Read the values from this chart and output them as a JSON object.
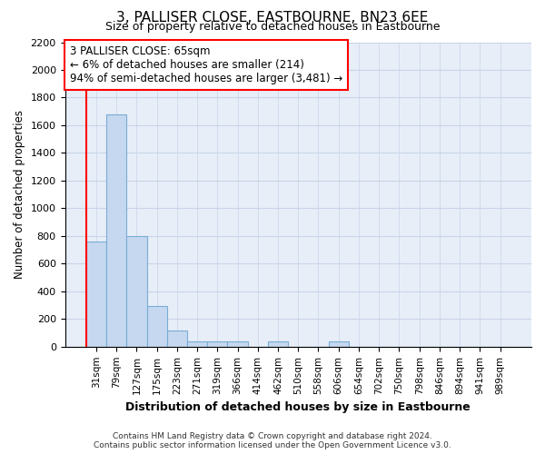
{
  "title": "3, PALLISER CLOSE, EASTBOURNE, BN23 6EE",
  "subtitle": "Size of property relative to detached houses in Eastbourne",
  "xlabel": "Distribution of detached houses by size in Eastbourne",
  "ylabel": "Number of detached properties",
  "categories": [
    "31sqm",
    "79sqm",
    "127sqm",
    "175sqm",
    "223sqm",
    "271sqm",
    "319sqm",
    "366sqm",
    "414sqm",
    "462sqm",
    "510sqm",
    "558sqm",
    "606sqm",
    "654sqm",
    "702sqm",
    "750sqm",
    "798sqm",
    "846sqm",
    "894sqm",
    "941sqm",
    "989sqm"
  ],
  "values": [
    760,
    1680,
    800,
    295,
    115,
    40,
    35,
    35,
    0,
    35,
    0,
    0,
    35,
    0,
    0,
    0,
    0,
    0,
    0,
    0,
    0
  ],
  "bar_color": "#c5d8f0",
  "bar_edge_color": "#7aadd4",
  "vline_x": -0.5,
  "vline_color": "red",
  "annotation_text": "3 PALLISER CLOSE: 65sqm\n← 6% of detached houses are smaller (214)\n94% of semi-detached houses are larger (3,481) →",
  "annotation_box_color": "white",
  "annotation_box_edge": "red",
  "ylim": [
    0,
    2200
  ],
  "yticks": [
    0,
    200,
    400,
    600,
    800,
    1000,
    1200,
    1400,
    1600,
    1800,
    2000,
    2200
  ],
  "background_color": "#e8eef8",
  "grid_color": "#c8d4e8",
  "footer": "Contains HM Land Registry data © Crown copyright and database right 2024.\nContains public sector information licensed under the Open Government Licence v3.0."
}
